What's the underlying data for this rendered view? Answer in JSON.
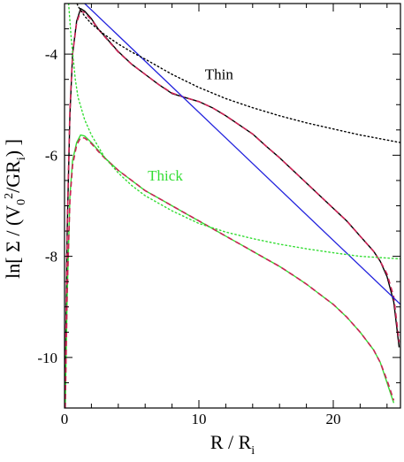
{
  "chart_data": {
    "type": "line",
    "xlabel_main": "R / R",
    "xlabel_sub": "i",
    "ylabel_parts": [
      "ln[ Σ / (V",
      "0",
      "2",
      "/GR",
      "i",
      ") ]"
    ],
    "xlim": [
      0,
      25
    ],
    "ylim": [
      -11,
      -3
    ],
    "x_ticks": [
      0,
      10,
      20
    ],
    "y_ticks": [
      -4,
      -6,
      -8,
      -10
    ],
    "x_tick_labels": [
      "0",
      "10",
      "20"
    ],
    "y_tick_labels": [
      "-4",
      "-6",
      "-8",
      "-10"
    ],
    "annotations": [
      {
        "text": "Thin",
        "x": 11.5,
        "y": -4.5,
        "color": "#000000"
      },
      {
        "text": "Thick",
        "x": 7.5,
        "y": -6.5,
        "color": "#33dd33"
      }
    ],
    "series": [
      {
        "style": "solid",
        "color": "#000000",
        "width": 1.4,
        "x": [
          0.05,
          0.2,
          0.4,
          0.6,
          0.9,
          1.2,
          1.5,
          2,
          2.5,
          3,
          4,
          5,
          6,
          7,
          8,
          9,
          10,
          11,
          12,
          13,
          14,
          15,
          16,
          17,
          18,
          19,
          20,
          21,
          22,
          23,
          23.5,
          24,
          24.5,
          24.9
        ],
        "y": [
          -10.5,
          -7.5,
          -5.2,
          -4.0,
          -3.35,
          -3.1,
          -3.15,
          -3.3,
          -3.5,
          -3.65,
          -3.95,
          -4.2,
          -4.4,
          -4.6,
          -4.78,
          -4.86,
          -4.94,
          -5.06,
          -5.22,
          -5.4,
          -5.58,
          -5.82,
          -6.05,
          -6.3,
          -6.55,
          -6.8,
          -7.05,
          -7.3,
          -7.6,
          -7.9,
          -8.1,
          -8.4,
          -8.9,
          -9.8
        ]
      },
      {
        "style": "dashed",
        "color": "#cc2255",
        "width": 1.6,
        "x": [
          0.05,
          0.2,
          0.4,
          0.6,
          0.9,
          1.2,
          1.5,
          2,
          2.5,
          3,
          4,
          5,
          6,
          7,
          8,
          9,
          10,
          11,
          12,
          13,
          14,
          15,
          16,
          17,
          18,
          19,
          20,
          21,
          22,
          23,
          23.5,
          24,
          24.5,
          24.9
        ],
        "y": [
          -10.5,
          -7.4,
          -5.1,
          -4.0,
          -3.38,
          -3.15,
          -3.18,
          -3.32,
          -3.5,
          -3.66,
          -3.96,
          -4.2,
          -4.4,
          -4.6,
          -4.77,
          -4.86,
          -4.94,
          -5.06,
          -5.22,
          -5.4,
          -5.58,
          -5.82,
          -6.05,
          -6.3,
          -6.55,
          -6.8,
          -7.05,
          -7.3,
          -7.6,
          -7.9,
          -8.1,
          -8.35,
          -8.8,
          -9.7
        ]
      },
      {
        "style": "solid",
        "color": "#33dd33",
        "width": 1.4,
        "x": [
          0.05,
          0.2,
          0.4,
          0.6,
          0.9,
          1.2,
          1.5,
          2,
          2.5,
          3,
          4,
          5,
          6,
          7,
          8,
          9,
          10,
          11,
          12,
          13,
          14,
          15,
          16,
          17,
          18,
          19,
          20,
          21,
          22,
          23,
          23.5,
          24,
          24.5
        ],
        "y": [
          -11,
          -8.8,
          -6.8,
          -6.1,
          -5.75,
          -5.6,
          -5.62,
          -5.75,
          -5.9,
          -6.05,
          -6.3,
          -6.5,
          -6.7,
          -6.85,
          -7.0,
          -7.15,
          -7.3,
          -7.45,
          -7.6,
          -7.75,
          -7.9,
          -8.05,
          -8.2,
          -8.37,
          -8.55,
          -8.75,
          -8.95,
          -9.2,
          -9.5,
          -9.85,
          -10.1,
          -10.5,
          -10.9
        ]
      },
      {
        "style": "dashed",
        "color": "#cc2255",
        "width": 1.6,
        "x": [
          0.05,
          0.2,
          0.4,
          0.6,
          0.9,
          1.2,
          1.5,
          2,
          2.5,
          3,
          4,
          5,
          6,
          7,
          8,
          9,
          10,
          11,
          12,
          13,
          14,
          15,
          16,
          17,
          18,
          19,
          20,
          21,
          22,
          23,
          23.5,
          24,
          24.5
        ],
        "y": [
          -11,
          -8.7,
          -6.9,
          -6.2,
          -5.8,
          -5.65,
          -5.66,
          -5.77,
          -5.92,
          -6.06,
          -6.3,
          -6.5,
          -6.7,
          -6.85,
          -7.0,
          -7.15,
          -7.3,
          -7.45,
          -7.6,
          -7.75,
          -7.9,
          -8.05,
          -8.2,
          -8.37,
          -8.55,
          -8.75,
          -8.95,
          -9.2,
          -9.5,
          -9.85,
          -10.1,
          -10.45,
          -10.85
        ]
      },
      {
        "style": "solid",
        "color": "#2222dd",
        "width": 1.3,
        "x": [
          1.5,
          25
        ],
        "y": [
          -3.0,
          -8.95
        ]
      },
      {
        "style": "dotted",
        "color": "#000000",
        "width": 1.4,
        "x": [
          0.3,
          0.6,
          1,
          1.5,
          2,
          3,
          4,
          5,
          6,
          8,
          10,
          12,
          14,
          16,
          18,
          20,
          22,
          25
        ],
        "y": [
          -2.4,
          -2.75,
          -3.05,
          -3.25,
          -3.4,
          -3.62,
          -3.8,
          -3.96,
          -4.1,
          -4.4,
          -4.66,
          -4.88,
          -5.06,
          -5.22,
          -5.36,
          -5.48,
          -5.6,
          -5.75
        ]
      },
      {
        "style": "dotted",
        "color": "#33dd33",
        "width": 1.4,
        "x": [
          0.3,
          0.5,
          0.8,
          1,
          1.5,
          2,
          3,
          4,
          5,
          6,
          8,
          10,
          12,
          14,
          16,
          18,
          20,
          22,
          25
        ],
        "y": [
          -3.0,
          -3.7,
          -4.5,
          -4.85,
          -5.3,
          -5.6,
          -6.05,
          -6.35,
          -6.6,
          -6.8,
          -7.1,
          -7.35,
          -7.52,
          -7.65,
          -7.76,
          -7.85,
          -7.93,
          -8.0,
          -8.05
        ]
      }
    ]
  }
}
